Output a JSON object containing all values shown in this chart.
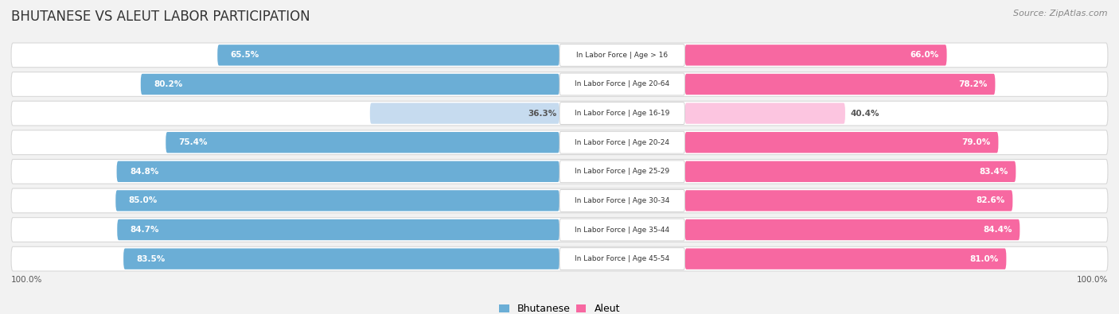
{
  "title": "BHUTANESE VS ALEUT LABOR PARTICIPATION",
  "source": "Source: ZipAtlas.com",
  "categories": [
    "In Labor Force | Age > 16",
    "In Labor Force | Age 20-64",
    "In Labor Force | Age 16-19",
    "In Labor Force | Age 20-24",
    "In Labor Force | Age 25-29",
    "In Labor Force | Age 30-34",
    "In Labor Force | Age 35-44",
    "In Labor Force | Age 45-54"
  ],
  "bhutanese": [
    65.5,
    80.2,
    36.3,
    75.4,
    84.8,
    85.0,
    84.7,
    83.5
  ],
  "aleut": [
    66.0,
    78.2,
    40.4,
    79.0,
    83.4,
    82.6,
    84.4,
    81.0
  ],
  "bhutanese_color": "#6baed6",
  "aleut_color": "#f768a1",
  "bhutanese_light_color": "#c6dbef",
  "aleut_light_color": "#fcc5e0",
  "bg_color": "#f2f2f2",
  "row_bg_color": "#ffffff",
  "max_value": 100.0,
  "legend_bhutanese": "Bhutanese",
  "legend_aleut": "Aleut",
  "x_left_label": "100.0%",
  "x_right_label": "100.0%"
}
